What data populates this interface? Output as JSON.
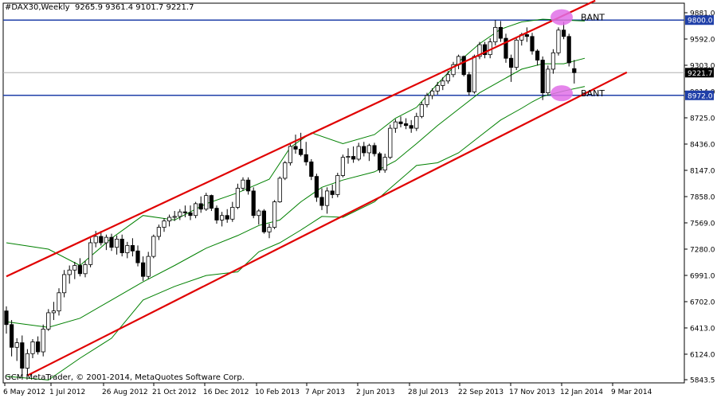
{
  "header": {
    "symbol": "#DAX30,Weekly",
    "ohlc": "9265.9 9361.4 9101.7 9221.7"
  },
  "footer": {
    "copyright": "GCM MetaTrader, © 2001-2014, MetaQuotes Software Corp."
  },
  "colors": {
    "bull": "#ffffff",
    "bear": "#000000",
    "wick": "#000000",
    "channel": "#e00000",
    "bollinger": "#008000",
    "level": "#1f3fa8",
    "price_line": "#b0b0b0",
    "highlight": "#e070e8"
  },
  "chart_data": {
    "type": "candlestick",
    "timeframe": "Weekly",
    "y_range": [
      5843.5,
      9881.0
    ],
    "y_ticks": [
      9881.0,
      9592.0,
      9303.0,
      9014.0,
      8725.0,
      8436.0,
      8147.0,
      7858.0,
      7569.0,
      7280.0,
      6991.0,
      6702.0,
      6413.0,
      6124.0,
      5843.5
    ],
    "x_labels": [
      "6 May 2012",
      "1 Jul 2012",
      "26 Aug 2012",
      "21 Oct 2012",
      "16 Dec 2012",
      "10 Feb 2013",
      "7 Apr 2013",
      "2 Jun 2013",
      "28 Jul 2013",
      "22 Sep 2013",
      "17 Nov 2013",
      "12 Jan 2014",
      "9 Mar 2014"
    ],
    "candles": [
      {
        "o": 6600,
        "h": 6650,
        "l": 6350,
        "c": 6450
      },
      {
        "o": 6450,
        "h": 6500,
        "l": 6100,
        "c": 6200
      },
      {
        "o": 6200,
        "h": 6300,
        "l": 6050,
        "c": 6250
      },
      {
        "o": 6250,
        "h": 6330,
        "l": 5880,
        "c": 5970
      },
      {
        "o": 5970,
        "h": 6180,
        "l": 5900,
        "c": 6130
      },
      {
        "o": 6130,
        "h": 6290,
        "l": 6080,
        "c": 6260
      },
      {
        "o": 6260,
        "h": 6320,
        "l": 6120,
        "c": 6150
      },
      {
        "o": 6150,
        "h": 6450,
        "l": 6100,
        "c": 6400
      },
      {
        "o": 6400,
        "h": 6620,
        "l": 6380,
        "c": 6580
      },
      {
        "o": 6580,
        "h": 6700,
        "l": 6500,
        "c": 6600
      },
      {
        "o": 6600,
        "h": 6850,
        "l": 6550,
        "c": 6800
      },
      {
        "o": 6800,
        "h": 7050,
        "l": 6750,
        "c": 7000
      },
      {
        "o": 7000,
        "h": 7100,
        "l": 6900,
        "c": 7050
      },
      {
        "o": 7050,
        "h": 7140,
        "l": 6950,
        "c": 7100
      },
      {
        "o": 7100,
        "h": 7180,
        "l": 6980,
        "c": 7010
      },
      {
        "o": 7010,
        "h": 7150,
        "l": 6970,
        "c": 7110
      },
      {
        "o": 7110,
        "h": 7400,
        "l": 7080,
        "c": 7350
      },
      {
        "o": 7350,
        "h": 7480,
        "l": 7300,
        "c": 7420
      },
      {
        "o": 7420,
        "h": 7480,
        "l": 7320,
        "c": 7350
      },
      {
        "o": 7350,
        "h": 7440,
        "l": 7270,
        "c": 7410
      },
      {
        "o": 7410,
        "h": 7450,
        "l": 7260,
        "c": 7300
      },
      {
        "o": 7300,
        "h": 7430,
        "l": 7220,
        "c": 7390
      },
      {
        "o": 7390,
        "h": 7440,
        "l": 7200,
        "c": 7240
      },
      {
        "o": 7240,
        "h": 7360,
        "l": 7180,
        "c": 7320
      },
      {
        "o": 7320,
        "h": 7400,
        "l": 7200,
        "c": 7260
      },
      {
        "o": 7260,
        "h": 7320,
        "l": 7090,
        "c": 7130
      },
      {
        "o": 7130,
        "h": 7200,
        "l": 6930,
        "c": 6980
      },
      {
        "o": 6980,
        "h": 7250,
        "l": 6950,
        "c": 7200
      },
      {
        "o": 7200,
        "h": 7440,
        "l": 7180,
        "c": 7420
      },
      {
        "o": 7420,
        "h": 7550,
        "l": 7380,
        "c": 7520
      },
      {
        "o": 7520,
        "h": 7620,
        "l": 7470,
        "c": 7590
      },
      {
        "o": 7590,
        "h": 7660,
        "l": 7530,
        "c": 7630
      },
      {
        "o": 7630,
        "h": 7700,
        "l": 7590,
        "c": 7640
      },
      {
        "o": 7640,
        "h": 7720,
        "l": 7600,
        "c": 7690
      },
      {
        "o": 7690,
        "h": 7760,
        "l": 7630,
        "c": 7680
      },
      {
        "o": 7680,
        "h": 7760,
        "l": 7600,
        "c": 7650
      },
      {
        "o": 7650,
        "h": 7800,
        "l": 7620,
        "c": 7780
      },
      {
        "o": 7780,
        "h": 7860,
        "l": 7680,
        "c": 7720
      },
      {
        "o": 7720,
        "h": 7900,
        "l": 7700,
        "c": 7870
      },
      {
        "o": 7870,
        "h": 7880,
        "l": 7700,
        "c": 7730
      },
      {
        "o": 7730,
        "h": 7760,
        "l": 7560,
        "c": 7600
      },
      {
        "o": 7600,
        "h": 7690,
        "l": 7530,
        "c": 7650
      },
      {
        "o": 7650,
        "h": 7720,
        "l": 7570,
        "c": 7610
      },
      {
        "o": 7610,
        "h": 7800,
        "l": 7580,
        "c": 7740
      },
      {
        "o": 7740,
        "h": 8000,
        "l": 7720,
        "c": 7950
      },
      {
        "o": 7950,
        "h": 8070,
        "l": 7920,
        "c": 8040
      },
      {
        "o": 8040,
        "h": 8070,
        "l": 7880,
        "c": 7920
      },
      {
        "o": 7920,
        "h": 7960,
        "l": 7620,
        "c": 7650
      },
      {
        "o": 7650,
        "h": 7720,
        "l": 7550,
        "c": 7700
      },
      {
        "o": 7700,
        "h": 7720,
        "l": 7450,
        "c": 7470
      },
      {
        "o": 7470,
        "h": 7560,
        "l": 7400,
        "c": 7520
      },
      {
        "o": 7520,
        "h": 7820,
        "l": 7500,
        "c": 7800
      },
      {
        "o": 7800,
        "h": 8080,
        "l": 7790,
        "c": 8060
      },
      {
        "o": 8060,
        "h": 8250,
        "l": 8040,
        "c": 8230
      },
      {
        "o": 8230,
        "h": 8440,
        "l": 8200,
        "c": 8410
      },
      {
        "o": 8410,
        "h": 8540,
        "l": 8330,
        "c": 8380
      },
      {
        "o": 8380,
        "h": 8560,
        "l": 8300,
        "c": 8320
      },
      {
        "o": 8320,
        "h": 8460,
        "l": 8200,
        "c": 8240
      },
      {
        "o": 8240,
        "h": 8270,
        "l": 8040,
        "c": 8080
      },
      {
        "o": 8080,
        "h": 8110,
        "l": 7800,
        "c": 7850
      },
      {
        "o": 7850,
        "h": 7950,
        "l": 7710,
        "c": 7760
      },
      {
        "o": 7760,
        "h": 7960,
        "l": 7670,
        "c": 7920
      },
      {
        "o": 7920,
        "h": 7990,
        "l": 7840,
        "c": 7880
      },
      {
        "o": 7880,
        "h": 8120,
        "l": 7850,
        "c": 8090
      },
      {
        "o": 8090,
        "h": 8320,
        "l": 8070,
        "c": 8290
      },
      {
        "o": 8290,
        "h": 8390,
        "l": 8220,
        "c": 8300
      },
      {
        "o": 8300,
        "h": 8410,
        "l": 8230,
        "c": 8270
      },
      {
        "o": 8270,
        "h": 8450,
        "l": 8250,
        "c": 8410
      },
      {
        "o": 8410,
        "h": 8460,
        "l": 8300,
        "c": 8340
      },
      {
        "o": 8340,
        "h": 8440,
        "l": 8250,
        "c": 8420
      },
      {
        "o": 8420,
        "h": 8450,
        "l": 8300,
        "c": 8330
      },
      {
        "o": 8330,
        "h": 8350,
        "l": 8120,
        "c": 8150
      },
      {
        "o": 8150,
        "h": 8330,
        "l": 8120,
        "c": 8290
      },
      {
        "o": 8290,
        "h": 8650,
        "l": 8270,
        "c": 8610
      },
      {
        "o": 8610,
        "h": 8710,
        "l": 8560,
        "c": 8680
      },
      {
        "o": 8680,
        "h": 8740,
        "l": 8620,
        "c": 8660
      },
      {
        "o": 8660,
        "h": 8720,
        "l": 8600,
        "c": 8640
      },
      {
        "o": 8640,
        "h": 8700,
        "l": 8560,
        "c": 8610
      },
      {
        "o": 8610,
        "h": 8780,
        "l": 8580,
        "c": 8740
      },
      {
        "o": 8740,
        "h": 8900,
        "l": 8720,
        "c": 8870
      },
      {
        "o": 8870,
        "h": 9000,
        "l": 8840,
        "c": 8970
      },
      {
        "o": 8970,
        "h": 9050,
        "l": 8930,
        "c": 9020
      },
      {
        "o": 9020,
        "h": 9120,
        "l": 8980,
        "c": 9080
      },
      {
        "o": 9080,
        "h": 9170,
        "l": 9030,
        "c": 9130
      },
      {
        "o": 9130,
        "h": 9240,
        "l": 9100,
        "c": 9200
      },
      {
        "o": 9200,
        "h": 9340,
        "l": 9170,
        "c": 9310
      },
      {
        "o": 9310,
        "h": 9420,
        "l": 9260,
        "c": 9400
      },
      {
        "o": 9400,
        "h": 9410,
        "l": 9180,
        "c": 9200
      },
      {
        "o": 9200,
        "h": 9230,
        "l": 8970,
        "c": 9010
      },
      {
        "o": 9010,
        "h": 9420,
        "l": 8990,
        "c": 9400
      },
      {
        "o": 9400,
        "h": 9560,
        "l": 9370,
        "c": 9530
      },
      {
        "o": 9530,
        "h": 9560,
        "l": 9380,
        "c": 9420
      },
      {
        "o": 9420,
        "h": 9600,
        "l": 9380,
        "c": 9560
      },
      {
        "o": 9560,
        "h": 9800,
        "l": 9520,
        "c": 9720
      },
      {
        "o": 9720,
        "h": 9790,
        "l": 9560,
        "c": 9600
      },
      {
        "o": 9600,
        "h": 9650,
        "l": 9330,
        "c": 9380
      },
      {
        "o": 9380,
        "h": 9420,
        "l": 9120,
        "c": 9280
      },
      {
        "o": 9280,
        "h": 9600,
        "l": 9250,
        "c": 9580
      },
      {
        "o": 9580,
        "h": 9660,
        "l": 9520,
        "c": 9640
      },
      {
        "o": 9640,
        "h": 9720,
        "l": 9560,
        "c": 9620
      },
      {
        "o": 9620,
        "h": 9660,
        "l": 9420,
        "c": 9460
      },
      {
        "o": 9460,
        "h": 9480,
        "l": 9300,
        "c": 9360
      },
      {
        "o": 9360,
        "h": 9400,
        "l": 8920,
        "c": 9000
      },
      {
        "o": 9000,
        "h": 9300,
        "l": 8970,
        "c": 9260
      },
      {
        "o": 9260,
        "h": 9480,
        "l": 9210,
        "c": 9440
      },
      {
        "o": 9440,
        "h": 9720,
        "l": 9410,
        "c": 9690
      },
      {
        "o": 9690,
        "h": 9780,
        "l": 9590,
        "c": 9620
      },
      {
        "o": 9620,
        "h": 9650,
        "l": 9290,
        "c": 9330
      },
      {
        "o": 9266,
        "h": 9361,
        "l": 9102,
        "c": 9222
      }
    ],
    "horizontal_levels": [
      {
        "value": 9800.0,
        "label": "9800.0"
      },
      {
        "value": 8972.0,
        "label": "8972.0"
      }
    ],
    "current_price": {
      "value": 9221.7,
      "label": "9221.7"
    },
    "channel_lines": [
      {
        "from": {
          "i": 0,
          "v": 6980
        },
        "to": {
          "i": 112,
          "v": 10015
        }
      },
      {
        "from": {
          "i": 4,
          "v": 5890
        },
        "to": {
          "i": 118,
          "v": 9225
        }
      }
    ],
    "annotations": [
      {
        "text": "BANT",
        "i": 105,
        "v": 9832
      },
      {
        "text": "BANT",
        "i": 105,
        "v": 8995
      }
    ],
    "bollinger": {
      "middle": [
        [
          0,
          6480
        ],
        [
          8,
          6420
        ],
        [
          14,
          6520
        ],
        [
          20,
          6720
        ],
        [
          26,
          6920
        ],
        [
          32,
          7100
        ],
        [
          38,
          7290
        ],
        [
          44,
          7430
        ],
        [
          48,
          7540
        ],
        [
          52,
          7600
        ],
        [
          56,
          7800
        ],
        [
          60,
          7960
        ],
        [
          64,
          8040
        ],
        [
          70,
          8130
        ],
        [
          74,
          8250
        ],
        [
          78,
          8440
        ],
        [
          82,
          8640
        ],
        [
          86,
          8820
        ],
        [
          90,
          9000
        ],
        [
          94,
          9130
        ],
        [
          98,
          9260
        ],
        [
          102,
          9320
        ],
        [
          106,
          9320
        ],
        [
          110,
          9380
        ]
      ],
      "upper": [
        [
          0,
          7350
        ],
        [
          8,
          7280
        ],
        [
          14,
          7100
        ],
        [
          20,
          7400
        ],
        [
          26,
          7650
        ],
        [
          32,
          7600
        ],
        [
          38,
          7780
        ],
        [
          44,
          7900
        ],
        [
          50,
          8050
        ],
        [
          54,
          8400
        ],
        [
          58,
          8560
        ],
        [
          64,
          8440
        ],
        [
          70,
          8540
        ],
        [
          74,
          8720
        ],
        [
          78,
          8840
        ],
        [
          82,
          9100
        ],
        [
          86,
          9340
        ],
        [
          90,
          9540
        ],
        [
          94,
          9700
        ],
        [
          98,
          9780
        ],
        [
          102,
          9810
        ],
        [
          106,
          9800
        ],
        [
          110,
          9790
        ]
      ],
      "lower": [
        [
          0,
          5880
        ],
        [
          8,
          5840
        ],
        [
          14,
          6080
        ],
        [
          20,
          6300
        ],
        [
          26,
          6720
        ],
        [
          32,
          6870
        ],
        [
          38,
          6990
        ],
        [
          44,
          7030
        ],
        [
          48,
          7250
        ],
        [
          52,
          7350
        ],
        [
          56,
          7490
        ],
        [
          60,
          7640
        ],
        [
          64,
          7630
        ],
        [
          70,
          7800
        ],
        [
          74,
          8000
        ],
        [
          78,
          8200
        ],
        [
          82,
          8230
        ],
        [
          86,
          8340
        ],
        [
          90,
          8520
        ],
        [
          94,
          8700
        ],
        [
          98,
          8830
        ],
        [
          100,
          8900
        ],
        [
          102,
          8960
        ],
        [
          106,
          9020
        ],
        [
          110,
          9070
        ]
      ]
    }
  }
}
